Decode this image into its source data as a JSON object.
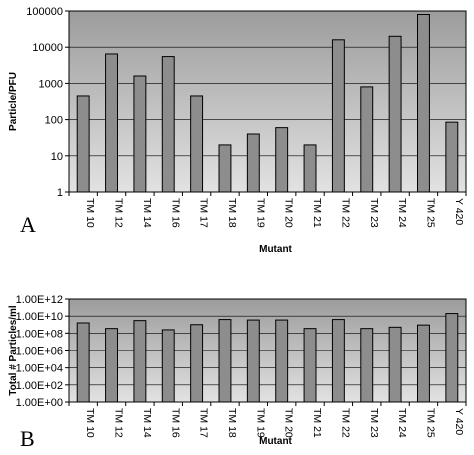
{
  "chart_data": [
    {
      "panel": "A",
      "type": "bar",
      "scale": "log",
      "ylabel": "Particle/PFU",
      "xlabel": "Mutant",
      "categories": [
        "TM 10",
        "TM 12",
        "TM 14",
        "TM 16",
        "TM 17",
        "TM 18",
        "TM 19",
        "TM 20",
        "TM 21",
        "TM 22",
        "TM 23",
        "TM 24",
        "TM 25",
        "Y 420"
      ],
      "values": [
        450,
        6500,
        1600,
        5500,
        450,
        20,
        40,
        60,
        20,
        16000,
        800,
        20000,
        80000,
        85
      ],
      "yticks": [
        "1",
        "10",
        "100",
        "1000",
        "10000",
        "100000"
      ],
      "ylim": [
        1,
        100000
      ],
      "grid": true
    },
    {
      "panel": "B",
      "type": "bar",
      "scale": "log",
      "ylabel": "Total # Particles/ml",
      "xlabel": "Mutant",
      "categories": [
        "TM 10",
        "TM 12",
        "TM 14",
        "TM 16",
        "TM 17",
        "TM 18",
        "TM 19",
        "TM 20",
        "TM 21",
        "TM 22",
        "TM 23",
        "TM 24",
        "TM 25",
        "Y 420"
      ],
      "values": [
        1600000000.0,
        350000000.0,
        3000000000.0,
        250000000.0,
        1000000000.0,
        4000000000.0,
        3500000000.0,
        3500000000.0,
        350000000.0,
        4000000000.0,
        350000000.0,
        500000000.0,
        900000000.0,
        20000000000.0
      ],
      "yticks": [
        "1.00E+00",
        "1.00E+02",
        "1.00E+04",
        "1.00E+06",
        "1.00E+08",
        "1.00E+10",
        "1.00E+12"
      ],
      "ylim": [
        1,
        1000000000000.0
      ],
      "grid": true
    }
  ],
  "colors": {
    "plot_bg_top": "#9c9c9c",
    "plot_bg_bottom": "#e2e2e2",
    "bar_fill": "#8d8d8d",
    "bar_stroke": "#000000",
    "grid": "#000000"
  }
}
